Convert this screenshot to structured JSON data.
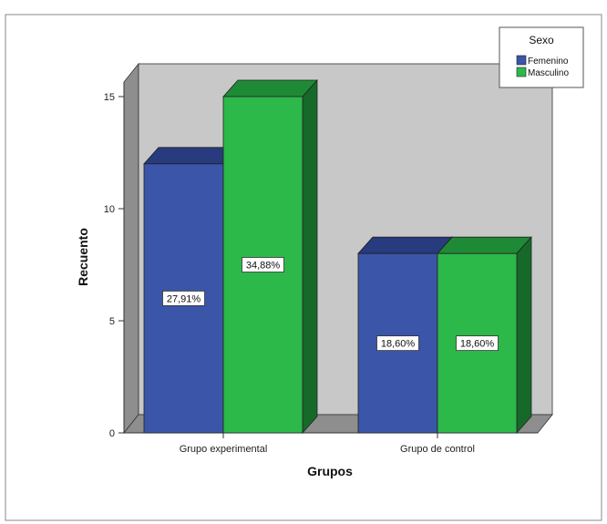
{
  "chart_data": {
    "type": "bar",
    "title": "",
    "xlabel": "Grupos",
    "ylabel": "Recuento",
    "categories": [
      "Grupo experimental",
      "Grupo de control"
    ],
    "series": [
      {
        "name": "Femenino",
        "values": [
          12,
          8
        ],
        "labels": [
          "27,91%",
          "18,60%"
        ],
        "color": "#3b55a8",
        "top_color": "#273b7e",
        "side_color": "#1e2f66"
      },
      {
        "name": "Masculino",
        "values": [
          15,
          8
        ],
        "labels": [
          "34,88%",
          "18,60%"
        ],
        "color": "#2db84a",
        "top_color": "#1f8a36",
        "side_color": "#17692a"
      }
    ],
    "ylim": [
      0,
      15
    ],
    "yticks": [
      "0",
      "5",
      "10",
      "15"
    ],
    "legend": {
      "title": "Sexo",
      "position": "top-right"
    },
    "grid": false,
    "style": "3d-bar"
  }
}
